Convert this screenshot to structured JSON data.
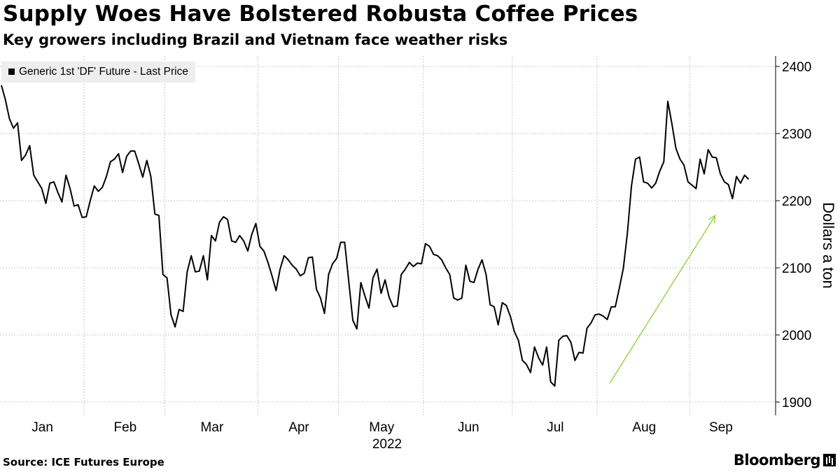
{
  "header": {
    "title": "Supply Woes Have Bolstered Robusta Coffee Prices",
    "subtitle": "Key growers including Brazil and Vietnam face weather risks"
  },
  "legend": {
    "label": "Generic 1st 'DF' Future - Last Price"
  },
  "footer": {
    "source": "Source: ICE Futures Europe",
    "brand": "Bloomberg"
  },
  "colors": {
    "line": "#000000",
    "gridline": "#bbbbbb",
    "trend_arrow": "#8bd12e",
    "legend_bg": "#eeeeee"
  },
  "chart_data": {
    "type": "line",
    "title": "Supply Woes Have Bolstered Robusta Coffee Prices",
    "subtitle": "Key growers including Brazil and Vietnam face weather risks",
    "ylabel": "Dollars a ton",
    "xlabel": "2022",
    "year_label": "2022",
    "ylim": [
      1885,
      2410
    ],
    "yticks": [
      1900,
      2000,
      2100,
      2200,
      2300,
      2400
    ],
    "grid": true,
    "legend_position": "top-left",
    "y_axis_side": "right",
    "months": [
      "Jan",
      "Feb",
      "Mar",
      "Apr",
      "May",
      "Jun",
      "Jul",
      "Aug",
      "Sep"
    ],
    "series": [
      {
        "name": "Generic 1st 'DF' Future - Last Price",
        "unit": "trading day index (Jan 3 = 0)",
        "x": [
          0,
          1,
          2,
          3,
          4,
          5,
          6,
          7,
          8,
          9,
          10,
          11,
          12,
          13,
          14,
          15,
          16,
          17,
          18,
          19,
          20,
          21,
          22,
          23,
          24,
          25,
          26,
          27,
          28,
          29,
          30,
          31,
          32,
          33,
          34,
          35,
          36,
          37,
          38,
          39,
          40,
          41,
          42,
          43,
          44,
          45,
          46,
          47,
          48,
          49,
          50,
          51,
          52,
          53,
          54,
          55,
          56,
          57,
          58,
          59,
          60,
          61,
          62,
          63,
          64,
          65,
          66,
          67,
          68,
          69,
          70,
          71,
          72,
          73,
          74,
          75,
          76,
          77,
          78,
          79,
          80,
          81,
          82,
          83,
          84,
          85,
          86,
          87,
          88,
          89,
          90,
          91,
          92,
          93,
          94,
          95,
          96,
          97,
          98,
          99,
          100,
          101,
          102,
          103,
          104,
          105,
          106,
          107,
          108,
          109,
          110,
          111,
          112,
          113,
          114,
          115,
          116,
          117,
          118,
          119,
          120,
          121,
          122,
          123,
          124,
          125,
          126,
          127,
          128,
          129,
          130,
          131,
          132,
          133,
          134,
          135,
          136,
          137,
          138,
          139,
          140,
          141,
          142,
          143,
          144,
          145,
          146,
          147,
          148,
          149,
          150,
          151,
          152,
          153,
          154,
          155,
          156,
          157,
          158,
          159,
          160,
          161,
          162,
          163,
          164,
          165,
          166,
          167,
          168,
          169,
          170,
          171,
          172,
          173,
          174,
          175,
          176,
          177,
          178,
          179,
          180,
          181,
          182,
          183,
          184,
          185
        ],
        "values": [
          2372,
          2350,
          2322,
          2308,
          2316,
          2260,
          2268,
          2282,
          2238,
          2228,
          2218,
          2196,
          2226,
          2228,
          2212,
          2198,
          2238,
          2218,
          2192,
          2194,
          2175,
          2176,
          2200,
          2222,
          2214,
          2220,
          2236,
          2258,
          2262,
          2270,
          2242,
          2266,
          2274,
          2274,
          2255,
          2235,
          2260,
          2236,
          2180,
          2178,
          2090,
          2085,
          2030,
          2012,
          2038,
          2035,
          2094,
          2118,
          2094,
          2095,
          2118,
          2082,
          2148,
          2140,
          2168,
          2176,
          2172,
          2140,
          2138,
          2148,
          2140,
          2125,
          2150,
          2166,
          2132,
          2125,
          2108,
          2088,
          2066,
          2098,
          2118,
          2112,
          2104,
          2098,
          2088,
          2092,
          2115,
          2116,
          2068,
          2055,
          2032,
          2090,
          2106,
          2114,
          2138,
          2138,
          2080,
          2022,
          2009,
          2078,
          2058,
          2040,
          2085,
          2098,
          2062,
          2082,
          2056,
          2042,
          2043,
          2090,
          2098,
          2108,
          2102,
          2107,
          2106,
          2136,
          2132,
          2120,
          2118,
          2112,
          2100,
          2090,
          2055,
          2052,
          2055,
          2104,
          2080,
          2078,
          2098,
          2112,
          2090,
          2045,
          2042,
          2015,
          2048,
          2044,
          2028,
          2005,
          1992,
          1962,
          1956,
          1944,
          1982,
          1966,
          1955,
          1982,
          1930,
          1924,
          1992,
          1998,
          1999,
          1989,
          1962,
          1974,
          1973,
          2010,
          2018,
          2030,
          2031,
          2028,
          2023,
          2042,
          2042,
          2070,
          2100,
          2152,
          2222,
          2262,
          2265,
          2228,
          2226,
          2219,
          2226,
          2244,
          2258,
          2348,
          2315,
          2278,
          2262,
          2253,
          2228,
          2223,
          2218,
          2262,
          2240,
          2276,
          2265,
          2264,
          2240,
          2228,
          2224,
          2203,
          2236,
          2226,
          2238,
          2232
        ]
      }
    ],
    "trend_arrow": {
      "from": {
        "x": 148,
        "y": 1928
      },
      "to": {
        "x": 175,
        "y": 2178
      }
    }
  }
}
